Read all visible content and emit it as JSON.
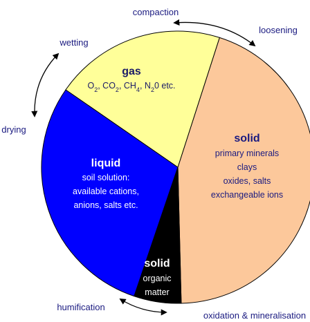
{
  "processes": {
    "compaction": "compaction",
    "loosening": "loosening",
    "wetting": "wetting",
    "drying": "drying",
    "humification": "humification",
    "oxidation": "oxidation & mineralisation"
  },
  "gas": {
    "title": "gas",
    "formula": [
      "O",
      "2",
      ", CO",
      "2",
      ", CH",
      "4",
      ", N",
      "2",
      "0 etc."
    ]
  },
  "solid_mineral": {
    "title": "solid",
    "lines": [
      "primary minerals",
      "clays",
      "oxides, salts",
      "exchangeable ions"
    ]
  },
  "liquid": {
    "title": "liquid",
    "lines": [
      "soil solution:",
      "available cations,",
      "anions, salts etc."
    ]
  },
  "solid_organic": {
    "title": "solid",
    "lines": [
      "organic",
      "matter"
    ]
  }
}
